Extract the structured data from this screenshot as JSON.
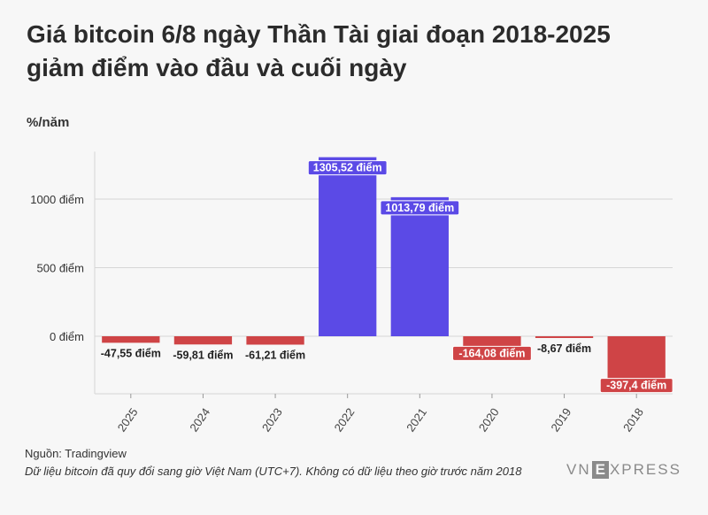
{
  "header": {
    "title_line1": "Giá bitcoin 6/8 ngày Thần Tài giai đoạn 2018-2025",
    "title_line2": "giảm điểm vào đầu và cuối ngày"
  },
  "footer": {
    "source": "Nguồn: Tradingview",
    "note": "Dữ liệu bitcoin đã quy đổi sang giờ Việt Nam (UTC+7). Không có dữ liệu theo giờ trước năm 2018",
    "logo_left": "VN",
    "logo_box": "E",
    "logo_right": "XPRESS"
  },
  "colors": {
    "negative": "#cf4446",
    "positive": "#5b4ae6",
    "grid": "#d6d6d6"
  },
  "chart_data": {
    "type": "bar",
    "ylabel": "%/năm",
    "categories": [
      "2025",
      "2024",
      "2023",
      "2022",
      "2021",
      "2020",
      "2019",
      "2018"
    ],
    "values": [
      -47.55,
      -59.81,
      -61.21,
      1305.52,
      1013.79,
      -164.08,
      -8.67,
      -397.4
    ],
    "data_labels": [
      "-47,55 điểm",
      "-59,81 điểm",
      "-61,21 điểm",
      "1305,52 điểm",
      "1013,79 điểm",
      "-164,08 điểm",
      "-8,67 điểm",
      "-397,4 điểm"
    ],
    "yticks": [
      0,
      500,
      1000
    ],
    "ytick_labels": [
      "0 điểm",
      "500 điểm",
      "1000 điểm"
    ],
    "ylim": [
      -400,
      1320
    ],
    "grid": true
  }
}
